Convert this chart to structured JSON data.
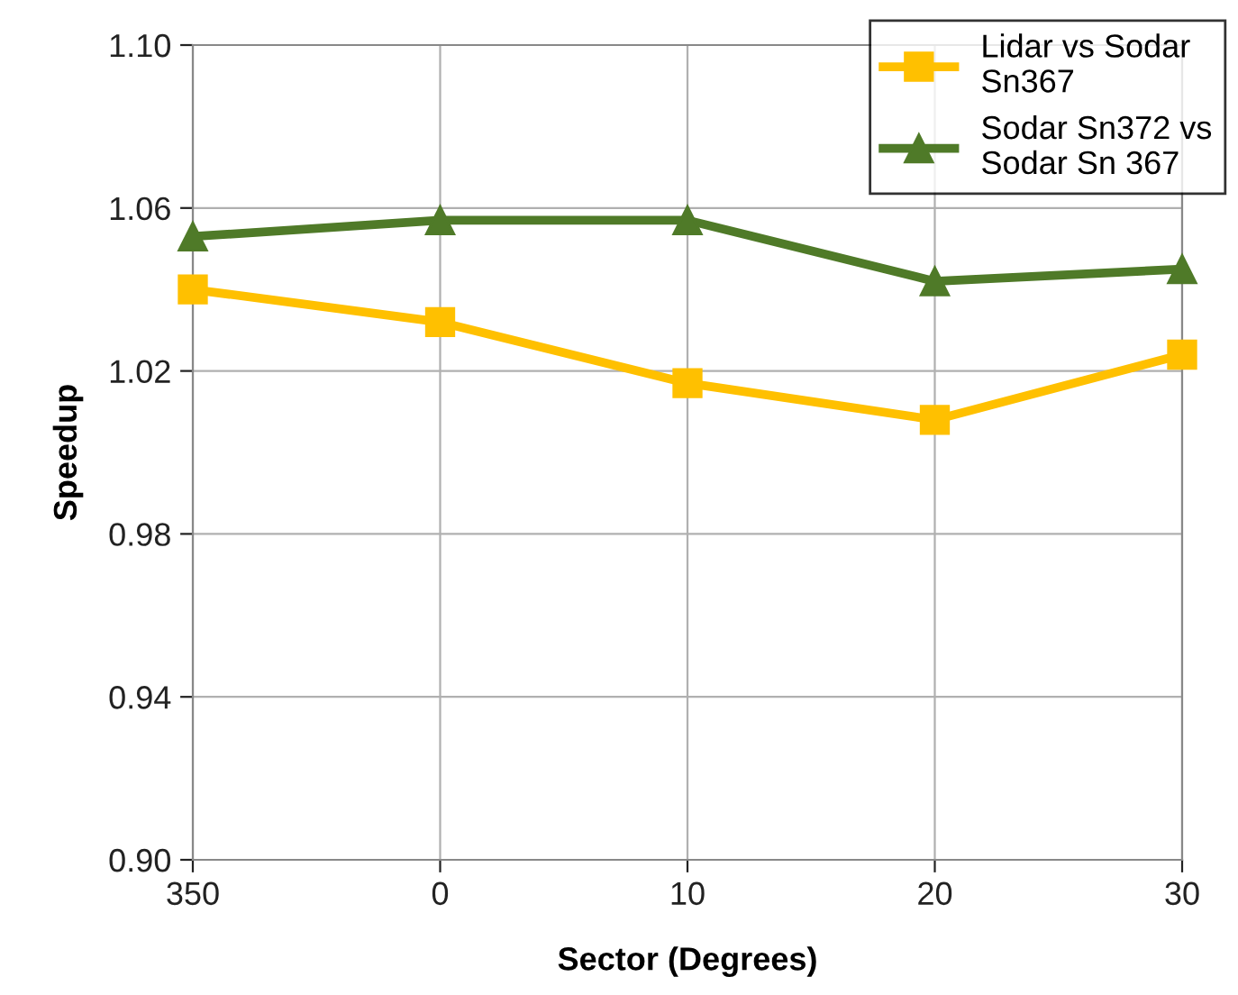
{
  "chart_data": {
    "type": "line",
    "xlabel": "Sector (Degrees)",
    "ylabel": "Speedup",
    "categories": [
      "350",
      "0",
      "10",
      "20",
      "30"
    ],
    "series": [
      {
        "name": "Lidar vs Sodar\nSn367",
        "color": "#ffc000",
        "marker": "square",
        "values": [
          1.04,
          1.032,
          1.017,
          1.008,
          1.024
        ]
      },
      {
        "name": "Sodar Sn372 vs\nSodar Sn 367",
        "color": "#4f7a28",
        "marker": "triangle",
        "values": [
          1.053,
          1.057,
          1.057,
          1.042,
          1.045
        ]
      }
    ],
    "ylim": [
      0.9,
      1.1
    ],
    "yticks": [
      {
        "value": 0.9,
        "label": "0.90"
      },
      {
        "value": 0.94,
        "label": "0.94"
      },
      {
        "value": 0.98,
        "label": "0.98"
      },
      {
        "value": 1.02,
        "label": "1.02"
      },
      {
        "value": 1.06,
        "label": "1.06"
      },
      {
        "value": 1.1,
        "label": "1.10"
      }
    ],
    "grid": true,
    "legend": "top right",
    "line_style": "solid"
  }
}
